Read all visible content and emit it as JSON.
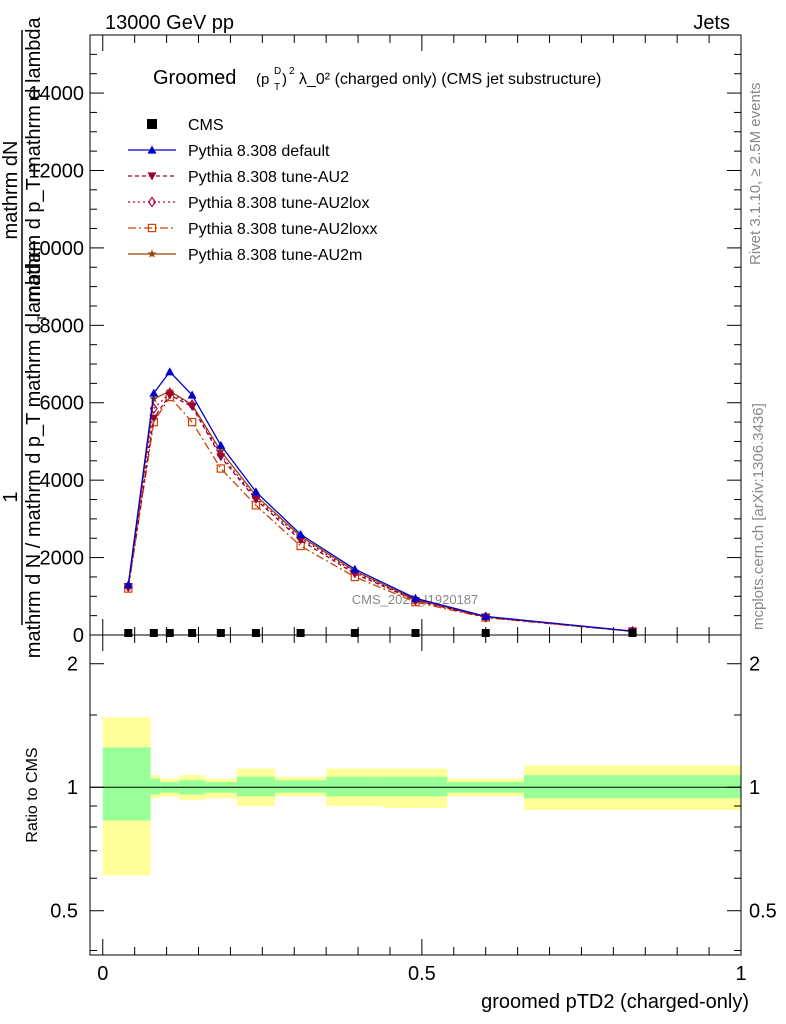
{
  "header": {
    "left": "13000 GeV pp",
    "right": "Jets"
  },
  "side_labels": {
    "top_right": "Rivet 3.1.10, ≥ 2.5M events",
    "bottom_right": "mcplots.cern.ch [arXiv:1306.3436]"
  },
  "chart_data": [
    {
      "type": "line",
      "title_prefix": "Groomed",
      "title_suffix": "λ_0²  (charged only) (CMS jet substructure)",
      "ylabel_fraction_numerator": "1",
      "ylabel_top_numerator": "mathrm dN",
      "ylabel_top_denominator": "mathrm d p_T mathrm d lambda",
      "ylabel_bottom_main": "mathrm d N / mathrm d p_T mathrm d lambda",
      "ylabel_bottom_sub": "T",
      "ylim": [
        0,
        15500
      ],
      "yticks": [
        0,
        2000,
        4000,
        6000,
        8000,
        10000,
        12000,
        14000
      ],
      "ytick_labels": [
        "0",
        "2000",
        "4000",
        "6000",
        "8000",
        "10000",
        "12000",
        "14000"
      ],
      "xlim": [
        -0.02,
        1.0
      ],
      "watermark": "CMS_2021_I1920187",
      "x": [
        0.04,
        0.08,
        0.105,
        0.14,
        0.185,
        0.24,
        0.31,
        0.395,
        0.49,
        0.6,
        0.83
      ],
      "cms_values": [
        0,
        0,
        0,
        0,
        0,
        0,
        0,
        0,
        0,
        0,
        0
      ],
      "series": [
        {
          "name": "Pythia 8.308 default",
          "color": "#0000cc",
          "marker": "triangle-up",
          "dash": "",
          "values": [
            1300,
            6250,
            6800,
            6200,
            4900,
            3700,
            2600,
            1700,
            950,
            480,
            100
          ]
        },
        {
          "name": "Pythia 8.308 tune-AU2",
          "color": "#990033",
          "marker": "triangle-down",
          "dash": "4,3",
          "values": [
            1250,
            5600,
            6200,
            5900,
            4600,
            3500,
            2450,
            1580,
            890,
            460,
            95
          ]
        },
        {
          "name": "Pythia 8.308 tune-AU2lox",
          "color": "#b00050",
          "marker": "diamond",
          "dash": "2,3",
          "values": [
            1250,
            5850,
            6250,
            5950,
            4650,
            3550,
            2500,
            1620,
            900,
            465,
            95
          ]
        },
        {
          "name": "Pythia 8.308 tune-AU2loxx",
          "color": "#cc4400",
          "marker": "square",
          "dash": "8,3,2,3",
          "values": [
            1200,
            5500,
            6150,
            5500,
            4300,
            3350,
            2300,
            1500,
            850,
            450,
            90
          ]
        },
        {
          "name": "Pythia 8.308 tune-AU2m",
          "color": "#994400",
          "marker": "star",
          "dash": "",
          "values": [
            1300,
            6100,
            6300,
            5950,
            4750,
            3600,
            2550,
            1650,
            920,
            470,
            98
          ]
        }
      ],
      "legend": {
        "data_label": "CMS",
        "placement": "top-left"
      }
    },
    {
      "type": "area",
      "ylabel": "Ratio to CMS",
      "xlabel": "groomed pTD2 (charged-only)",
      "ylim": [
        0.39,
        2.35
      ],
      "log_y": true,
      "yticks": [
        0.5,
        1,
        2
      ],
      "ytick_labels": [
        "0.5",
        "1",
        "2"
      ],
      "xticks": [
        0,
        0.5,
        1
      ],
      "xtick_labels": [
        "0",
        "0.5",
        "1"
      ],
      "bins": [
        {
          "lo": 0.0,
          "hi": 0.075,
          "in_lo": 0.83,
          "in_hi": 1.25,
          "out_lo": 0.61,
          "out_hi": 1.48
        },
        {
          "lo": 0.075,
          "hi": 0.09,
          "in_lo": 0.96,
          "in_hi": 1.05,
          "out_lo": 0.94,
          "out_hi": 1.07
        },
        {
          "lo": 0.09,
          "hi": 0.12,
          "in_lo": 0.97,
          "in_hi": 1.03,
          "out_lo": 0.95,
          "out_hi": 1.05
        },
        {
          "lo": 0.12,
          "hi": 0.16,
          "in_lo": 0.96,
          "in_hi": 1.04,
          "out_lo": 0.93,
          "out_hi": 1.07
        },
        {
          "lo": 0.16,
          "hi": 0.21,
          "in_lo": 0.97,
          "in_hi": 1.03,
          "out_lo": 0.94,
          "out_hi": 1.05
        },
        {
          "lo": 0.21,
          "hi": 0.27,
          "in_lo": 0.95,
          "in_hi": 1.06,
          "out_lo": 0.9,
          "out_hi": 1.11
        },
        {
          "lo": 0.27,
          "hi": 0.35,
          "in_lo": 0.97,
          "in_hi": 1.04,
          "out_lo": 0.95,
          "out_hi": 1.06
        },
        {
          "lo": 0.35,
          "hi": 0.44,
          "in_lo": 0.95,
          "in_hi": 1.06,
          "out_lo": 0.9,
          "out_hi": 1.11
        },
        {
          "lo": 0.44,
          "hi": 0.54,
          "in_lo": 0.95,
          "in_hi": 1.06,
          "out_lo": 0.89,
          "out_hi": 1.11
        },
        {
          "lo": 0.54,
          "hi": 0.66,
          "in_lo": 0.97,
          "in_hi": 1.03,
          "out_lo": 0.95,
          "out_hi": 1.05
        },
        {
          "lo": 0.66,
          "hi": 1.0,
          "in_lo": 0.94,
          "in_hi": 1.07,
          "out_lo": 0.88,
          "out_hi": 1.13
        }
      ],
      "colors": {
        "inner": "#99ff99",
        "outer": "#ffff99",
        "unity": "#000000"
      }
    }
  ]
}
